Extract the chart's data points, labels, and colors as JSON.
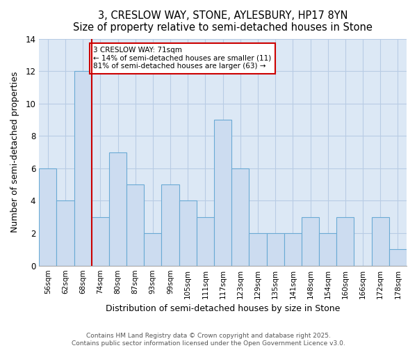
{
  "title1": "3, CRESLOW WAY, STONE, AYLESBURY, HP17 8YN",
  "title2": "Size of property relative to semi-detached houses in Stone",
  "xlabel": "Distribution of semi-detached houses by size in Stone",
  "ylabel": "Number of semi-detached properties",
  "categories": [
    "56sqm",
    "62sqm",
    "68sqm",
    "74sqm",
    "80sqm",
    "87sqm",
    "93sqm",
    "99sqm",
    "105sqm",
    "111sqm",
    "117sqm",
    "123sqm",
    "129sqm",
    "135sqm",
    "141sqm",
    "148sqm",
    "154sqm",
    "160sqm",
    "166sqm",
    "172sqm",
    "178sqm"
  ],
  "values": [
    6,
    4,
    12,
    3,
    7,
    5,
    2,
    5,
    4,
    3,
    9,
    6,
    2,
    2,
    2,
    3,
    2,
    3,
    0,
    3,
    1
  ],
  "highlight_index": 2,
  "bar_color": "#ccdcf0",
  "bar_edge_color": "#6aaad4",
  "highlight_line_color": "#cc0000",
  "annotation_text": "3 CRESLOW WAY: 71sqm\n← 14% of semi-detached houses are smaller (11)\n81% of semi-detached houses are larger (63) →",
  "annotation_box_color": "#cc0000",
  "ylim": [
    0,
    14
  ],
  "yticks": [
    0,
    2,
    4,
    6,
    8,
    10,
    12,
    14
  ],
  "plot_bg_color": "#dce8f5",
  "fig_bg_color": "#ffffff",
  "grid_color": "#b8cce4",
  "footer1": "Contains HM Land Registry data © Crown copyright and database right 2025.",
  "footer2": "Contains public sector information licensed under the Open Government Licence v3.0."
}
